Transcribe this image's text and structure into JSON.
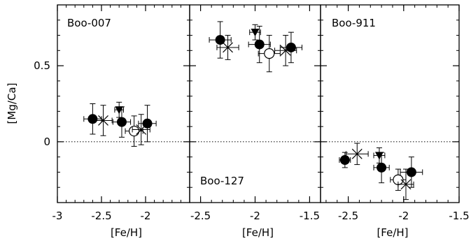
{
  "chart_data": [
    {
      "type": "scatter",
      "title": "Boo-007",
      "xlabel": "[Fe/H]",
      "ylabel": "[Mg/Ca]",
      "xlim": [
        -3.0,
        -1.5
      ],
      "ylim": [
        -0.4,
        0.9
      ],
      "xticks": [
        "-3",
        "-2.5",
        "-2"
      ],
      "yticks": [
        "0",
        "0.5"
      ],
      "reference_line_y": 0,
      "points": [
        {
          "marker": "filled-circle",
          "x": -2.6,
          "y": 0.15,
          "xerr": 0.1,
          "yerr": 0.1
        },
        {
          "marker": "cross",
          "x": -2.48,
          "y": 0.14,
          "xerr": 0.1,
          "yerr": 0.1
        },
        {
          "marker": "filled-triangle",
          "x": -2.3,
          "y": 0.21,
          "xerr": 0.05,
          "yerr": 0.05
        },
        {
          "marker": "filled-circle",
          "x": -2.27,
          "y": 0.13,
          "xerr": 0.1,
          "yerr": 0.1
        },
        {
          "marker": "open-circle",
          "x": -2.13,
          "y": 0.07,
          "xerr": 0.1,
          "yerr": 0.1
        },
        {
          "marker": "cross",
          "x": -2.05,
          "y": 0.08,
          "xerr": 0.1,
          "yerr": 0.1
        },
        {
          "marker": "filled-circle",
          "x": -1.98,
          "y": 0.12,
          "xerr": 0.1,
          "yerr": 0.12
        }
      ]
    },
    {
      "type": "scatter",
      "title": "Boo-127",
      "xlabel": "[Fe/H]",
      "xlim": [
        -2.6,
        -1.4
      ],
      "ylim": [
        -0.4,
        0.9
      ],
      "xticks": [
        "-2.5",
        "-2",
        "-1.5"
      ],
      "reference_line_y": 0,
      "points": [
        {
          "marker": "filled-circle",
          "x": -2.32,
          "y": 0.67,
          "xerr": 0.1,
          "yerr": 0.12
        },
        {
          "marker": "cross",
          "x": -2.25,
          "y": 0.62,
          "xerr": 0.1,
          "yerr": 0.08
        },
        {
          "marker": "filled-triangle",
          "x": -2.0,
          "y": 0.72,
          "xerr": 0.05,
          "yerr": 0.05
        },
        {
          "marker": "filled-circle",
          "x": -1.96,
          "y": 0.64,
          "xerr": 0.1,
          "yerr": 0.12
        },
        {
          "marker": "open-circle",
          "x": -1.87,
          "y": 0.58,
          "xerr": 0.1,
          "yerr": 0.12
        },
        {
          "marker": "cross",
          "x": -1.72,
          "y": 0.6,
          "xerr": 0.1,
          "yerr": 0.1
        },
        {
          "marker": "filled-circle",
          "x": -1.67,
          "y": 0.62,
          "xerr": 0.1,
          "yerr": 0.1
        }
      ]
    },
    {
      "type": "scatter",
      "title": "Boo-911",
      "xlabel": "[Fe/H]",
      "xlim": [
        -2.75,
        -1.5
      ],
      "ylim": [
        -0.4,
        0.9
      ],
      "xticks": [
        "-2.5",
        "-2",
        "-1.5"
      ],
      "reference_line_y": 0,
      "points": [
        {
          "marker": "filled-circle",
          "x": -2.53,
          "y": -0.12,
          "xerr": 0.05,
          "yerr": 0.05
        },
        {
          "marker": "cross",
          "x": -2.42,
          "y": -0.08,
          "xerr": 0.1,
          "yerr": 0.07
        },
        {
          "marker": "filled-triangle",
          "x": -2.22,
          "y": -0.09,
          "xerr": 0.05,
          "yerr": 0.05
        },
        {
          "marker": "filled-circle",
          "x": -2.2,
          "y": -0.17,
          "xerr": 0.07,
          "yerr": 0.1
        },
        {
          "marker": "open-circle",
          "x": -2.05,
          "y": -0.25,
          "xerr": 0.07,
          "yerr": 0.07
        },
        {
          "marker": "cross",
          "x": -1.98,
          "y": -0.28,
          "xerr": 0.07,
          "yerr": 0.1
        },
        {
          "marker": "filled-circle",
          "x": -1.93,
          "y": -0.2,
          "xerr": 0.1,
          "yerr": 0.1
        }
      ]
    }
  ]
}
